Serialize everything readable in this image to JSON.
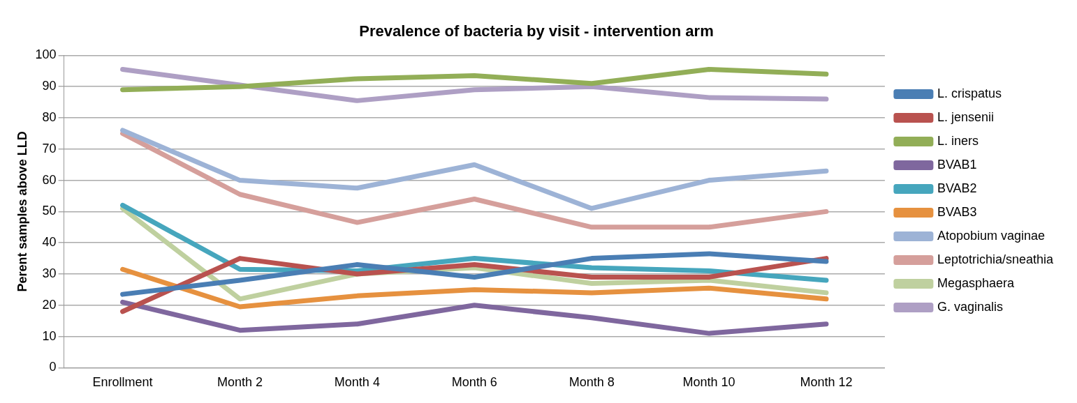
{
  "chart_data": {
    "type": "line",
    "title": "Prevalence of bacteria by visit - intervention arm",
    "ylabel": "Perent samples above LLD",
    "categories": [
      "Enrollment",
      "Month 2",
      "Month 4",
      "Month 6",
      "Month 8",
      "Month 10",
      "Month 12"
    ],
    "ylim": [
      0,
      100
    ],
    "yticks": [
      0,
      10,
      20,
      30,
      40,
      50,
      60,
      70,
      80,
      90,
      100
    ],
    "grid": "y",
    "legend": "right",
    "marker": "none",
    "line_style": "solid",
    "series": [
      {
        "name": "L. crispatus",
        "color": "#4a7eb4",
        "values": [
          23.5,
          28,
          33,
          29,
          35,
          36.5,
          34
        ]
      },
      {
        "name": "L. jensenii",
        "color": "#b9524f",
        "values": [
          18,
          35,
          30,
          33,
          29,
          29,
          35
        ]
      },
      {
        "name": "L. iners",
        "color": "#92ae57",
        "values": [
          89,
          90,
          92.5,
          93.5,
          91,
          95.5,
          94
        ]
      },
      {
        "name": "BVAB1",
        "color": "#7f679e",
        "values": [
          21,
          12,
          14,
          20,
          16,
          11,
          14
        ]
      },
      {
        "name": "BVAB2",
        "color": "#46a6bd",
        "values": [
          52,
          31.5,
          31,
          35,
          32,
          31,
          28
        ]
      },
      {
        "name": "BVAB3",
        "color": "#e6913f",
        "values": [
          31.5,
          19.5,
          23,
          25,
          24,
          25.5,
          22
        ]
      },
      {
        "name": "Atopobium vaginae",
        "color": "#9db3d6",
        "values": [
          76,
          60,
          57.5,
          65,
          51,
          60,
          63
        ]
      },
      {
        "name": "Leptotrichia/sneathia",
        "color": "#d59f9b",
        "values": [
          75,
          55.5,
          46.5,
          54,
          45,
          45,
          50
        ]
      },
      {
        "name": "Megasphaera",
        "color": "#bfd09f",
        "values": [
          51,
          22,
          30,
          32,
          27,
          28,
          24
        ]
      },
      {
        "name": "G. vaginalis",
        "color": "#ae9fc4",
        "values": [
          95.5,
          90.5,
          85.5,
          89,
          90,
          86.5,
          86
        ]
      }
    ]
  }
}
